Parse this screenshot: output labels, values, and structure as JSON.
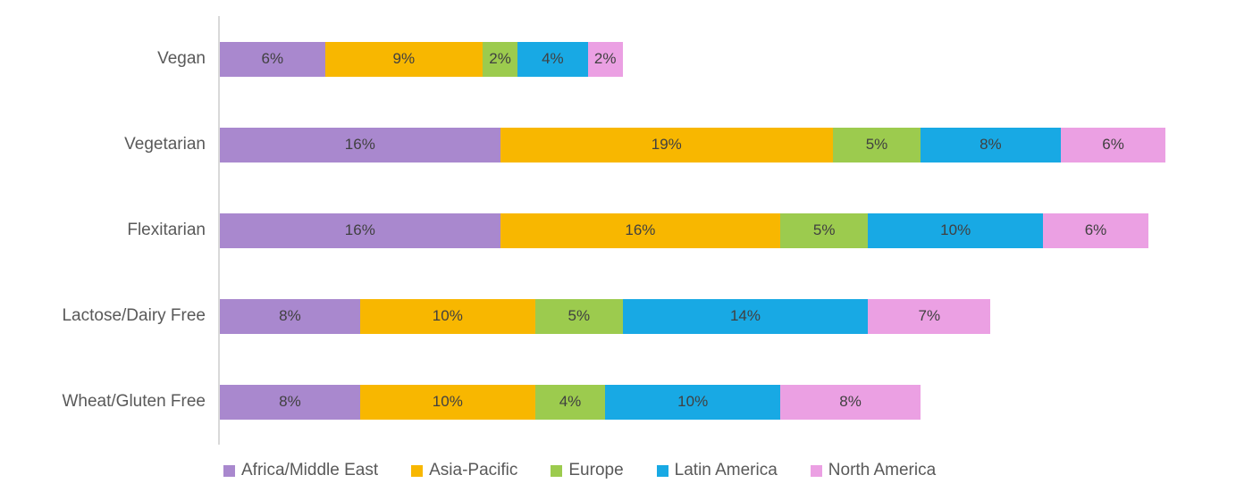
{
  "chart_data": {
    "type": "bar",
    "orientation": "horizontal",
    "stacked": true,
    "title": "",
    "xlabel": "",
    "ylabel": "",
    "xlim": [
      0,
      58
    ],
    "grid": false,
    "legend_position": "bottom",
    "value_suffix": "%",
    "axis_line_color": "#d9d9d9",
    "category_label_color": "#595959",
    "value_label_color": "#404040",
    "categories": [
      "Vegan",
      "Vegetarian",
      "Flexitarian",
      "Lactose/Dairy Free",
      "Wheat/Gluten Free"
    ],
    "series": [
      {
        "name": "Africa/Middle East",
        "color": "#a988ce",
        "values": [
          6,
          16,
          16,
          8,
          8
        ]
      },
      {
        "name": "Asia-Pacific",
        "color": "#f8b700",
        "values": [
          9,
          19,
          16,
          10,
          10
        ]
      },
      {
        "name": "Europe",
        "color": "#9ccb4e",
        "values": [
          2,
          5,
          5,
          5,
          4
        ]
      },
      {
        "name": "Latin America",
        "color": "#18a9e4",
        "values": [
          4,
          8,
          10,
          14,
          10
        ]
      },
      {
        "name": "North America",
        "color": "#eba0e3",
        "values": [
          2,
          6,
          6,
          7,
          8
        ]
      }
    ]
  }
}
